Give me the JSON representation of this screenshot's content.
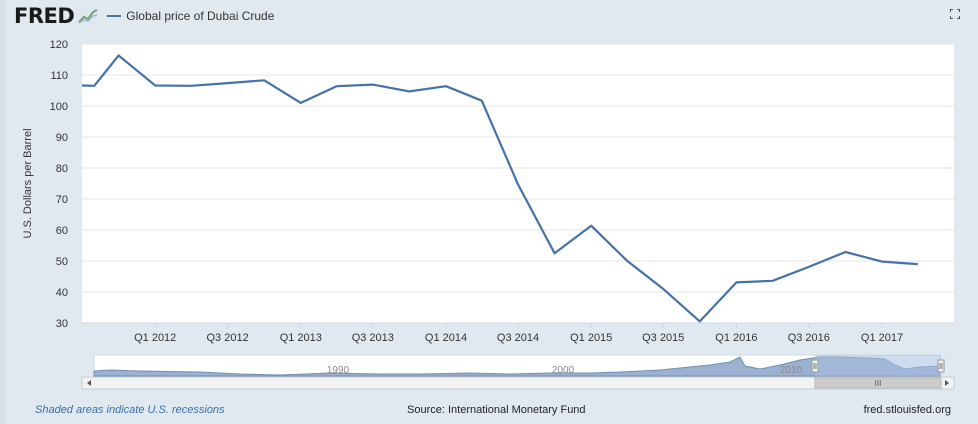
{
  "header": {
    "logo": "FRED",
    "logo_icon": "fred-graph-icon",
    "legend_label": "Global price of Dubai Crude",
    "fullscreen_icon": "fullscreen-icon"
  },
  "colors": {
    "series": "#4572a7",
    "background": "#e1e9f0",
    "plot": "#ffffff",
    "navigator_fill": "#9ab2cf",
    "navigator_selection": "#a7bde0"
  },
  "chart_data": {
    "type": "line",
    "title": "",
    "xlabel": "",
    "ylabel": "U.S. Dollars per Barrel",
    "ylim": [
      30,
      120
    ],
    "yticks": [
      30,
      40,
      50,
      60,
      70,
      80,
      90,
      100,
      110,
      120
    ],
    "xlim": [
      "2011-07-01",
      "2017-07-01"
    ],
    "xticks": [
      {
        "label": "Q1 2012",
        "x": "2012-01-01"
      },
      {
        "label": "Q3 2012",
        "x": "2012-07-01"
      },
      {
        "label": "Q1 2013",
        "x": "2013-01-01"
      },
      {
        "label": "Q3 2013",
        "x": "2013-07-01"
      },
      {
        "label": "Q1 2014",
        "x": "2014-01-01"
      },
      {
        "label": "Q3 2014",
        "x": "2014-07-01"
      },
      {
        "label": "Q1 2015",
        "x": "2015-01-01"
      },
      {
        "label": "Q3 2015",
        "x": "2015-07-01"
      },
      {
        "label": "Q1 2016",
        "x": "2016-01-01"
      },
      {
        "label": "Q3 2016",
        "x": "2016-07-01"
      },
      {
        "label": "Q1 2017",
        "x": "2017-01-01"
      }
    ],
    "grid": true,
    "legend": "top-left",
    "series": [
      {
        "name": "Global price of Dubai Crude",
        "points": [
          {
            "x": "2011-07-01",
            "y": 106.6
          },
          {
            "x": "2011-08-01",
            "y": 106.5
          },
          {
            "x": "2011-10-01",
            "y": 116.3
          },
          {
            "x": "2012-01-01",
            "y": 106.6
          },
          {
            "x": "2012-04-01",
            "y": 106.5
          },
          {
            "x": "2012-07-01",
            "y": 107.4
          },
          {
            "x": "2012-10-01",
            "y": 108.3
          },
          {
            "x": "2013-01-01",
            "y": 101.0
          },
          {
            "x": "2013-04-01",
            "y": 106.4
          },
          {
            "x": "2013-07-01",
            "y": 106.9
          },
          {
            "x": "2013-10-01",
            "y": 104.7
          },
          {
            "x": "2014-01-01",
            "y": 106.4
          },
          {
            "x": "2014-04-01",
            "y": 101.7
          },
          {
            "x": "2014-07-01",
            "y": 74.7
          },
          {
            "x": "2014-10-01",
            "y": 52.5
          },
          {
            "x": "2015-01-01",
            "y": 61.4
          },
          {
            "x": "2015-04-01",
            "y": 50.1
          },
          {
            "x": "2015-07-01",
            "y": 41.0
          },
          {
            "x": "2015-10-01",
            "y": 30.5
          },
          {
            "x": "2016-01-01",
            "y": 43.1
          },
          {
            "x": "2016-04-01",
            "y": 43.6
          },
          {
            "x": "2016-07-01",
            "y": 48.1
          },
          {
            "x": "2016-10-01",
            "y": 52.9
          },
          {
            "x": "2017-01-01",
            "y": 49.8
          },
          {
            "x": "2017-04-01",
            "y": 49.0
          }
        ]
      }
    ]
  },
  "navigator": {
    "year_labels": [
      "1990",
      "2000",
      "2010"
    ],
    "handle_glyph": "III"
  },
  "footer": {
    "recession_note": "Shaded areas indicate U.S. recessions",
    "source": "Source: International Monetary Fund",
    "site": "fred.stlouisfed.org"
  }
}
